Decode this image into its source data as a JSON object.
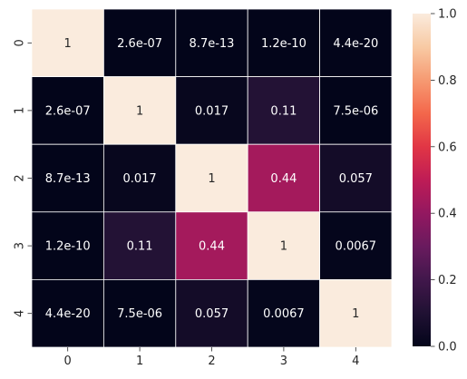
{
  "chart_data": {
    "type": "heatmap",
    "x_tick_labels": [
      "0",
      "1",
      "2",
      "3",
      "4"
    ],
    "y_tick_labels": [
      "0",
      "1",
      "2",
      "3",
      "4"
    ],
    "matrix": [
      [
        1,
        2.6e-07,
        8.7e-13,
        1.2e-10,
        4.4e-20
      ],
      [
        2.6e-07,
        1,
        0.017,
        0.11,
        7.5e-06
      ],
      [
        8.7e-13,
        0.017,
        1,
        0.44,
        0.057
      ],
      [
        1.2e-10,
        0.11,
        0.44,
        1,
        0.0067
      ],
      [
        4.4e-20,
        7.5e-06,
        0.057,
        0.0067,
        1
      ]
    ],
    "annotations": [
      [
        "1",
        "2.6e-07",
        "8.7e-13",
        "1.2e-10",
        "4.4e-20"
      ],
      [
        "2.6e-07",
        "1",
        "0.017",
        "0.11",
        "7.5e-06"
      ],
      [
        "8.7e-13",
        "0.017",
        "1",
        "0.44",
        "0.057"
      ],
      [
        "1.2e-10",
        "0.11",
        "0.44",
        "1",
        "0.0067"
      ],
      [
        "4.4e-20",
        "7.5e-06",
        "0.057",
        "0.0067",
        "1"
      ]
    ],
    "colorbar": {
      "min": 0,
      "max": 1,
      "ticks": [
        0.0,
        0.2,
        0.4,
        0.6,
        0.8,
        1.0
      ],
      "tick_labels": [
        "0.0",
        "0.2",
        "0.4",
        "0.6",
        "0.8",
        "1.0"
      ]
    },
    "colormap": "rocket",
    "title": "",
    "xlabel": "",
    "ylabel": "",
    "grid": false
  }
}
